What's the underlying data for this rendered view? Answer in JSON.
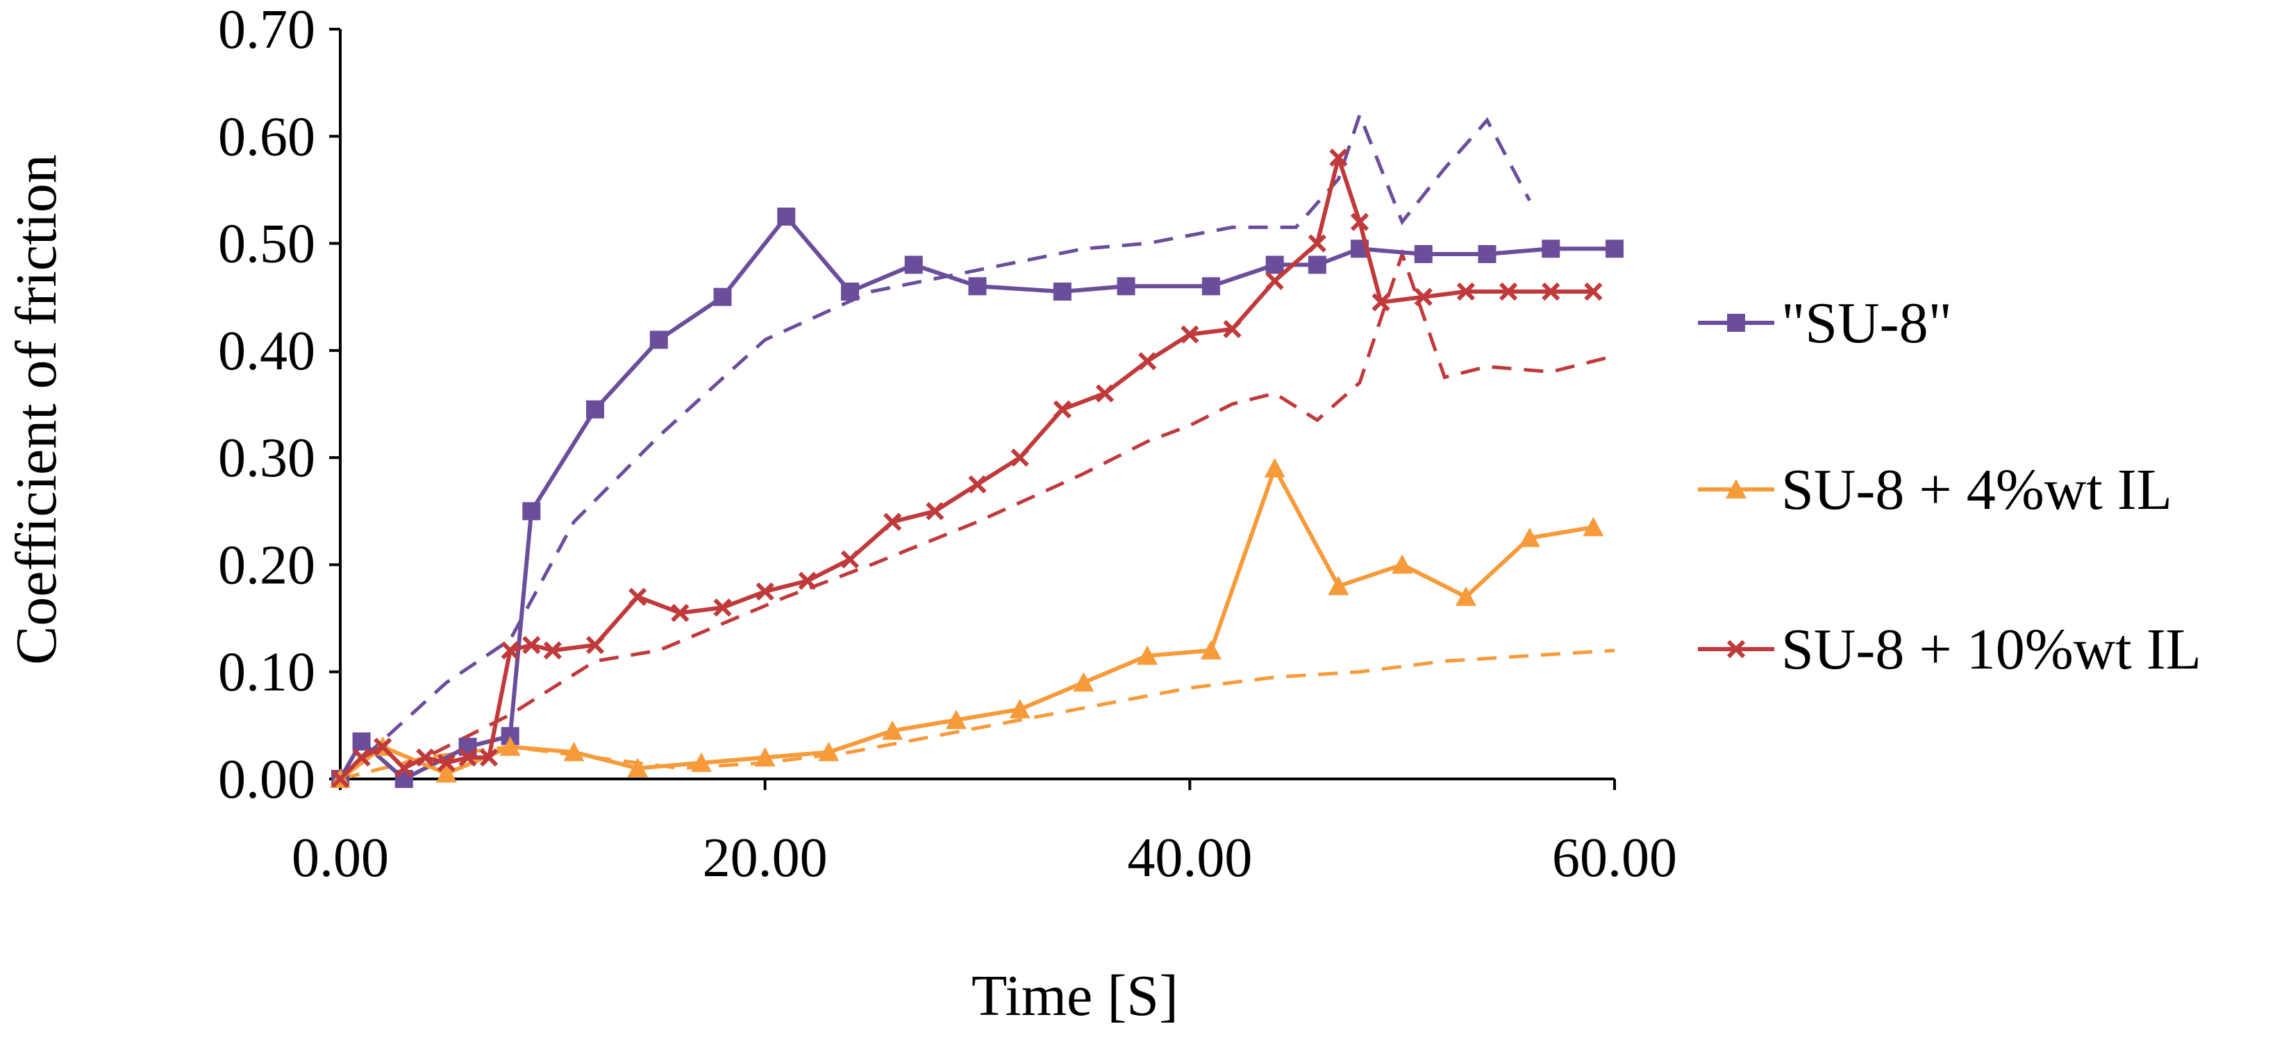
{
  "chart_data": {
    "type": "line",
    "xlabel": "Time [S]",
    "ylabel": "Coefficient of friction",
    "xlim": [
      0,
      60
    ],
    "ylim": [
      0,
      0.7
    ],
    "x_ticks": [
      "0.00",
      "20.00",
      "40.00",
      "60.00"
    ],
    "x_tick_values": [
      0,
      20,
      40,
      60
    ],
    "y_ticks": [
      "0.00",
      "0.10",
      "0.20",
      "0.30",
      "0.40",
      "0.50",
      "0.60",
      "0.70"
    ],
    "y_tick_values": [
      0,
      0.1,
      0.2,
      0.3,
      0.4,
      0.5,
      0.6,
      0.7
    ],
    "grid": false,
    "legend_position": "right",
    "series": [
      {
        "name": "\"SU-8\"",
        "color": "#6B4E9B",
        "marker": "square",
        "line_style": "solid",
        "x": [
          0,
          1,
          3,
          6,
          8,
          9,
          12,
          15,
          18,
          21,
          24,
          27,
          30,
          34,
          37,
          41,
          44,
          46,
          48,
          51,
          54,
          57,
          60
        ],
        "y": [
          0,
          0.035,
          0,
          0.03,
          0.04,
          0.25,
          0.345,
          0.41,
          0.45,
          0.525,
          0.455,
          0.48,
          0.46,
          0.455,
          0.46,
          0.46,
          0.48,
          0.48,
          0.495,
          0.49,
          0.49,
          0.495,
          0.495
        ]
      },
      {
        "name": "SU-8 + 4%wt IL",
        "color": "#F79A3A",
        "marker": "triangle",
        "line_style": "solid",
        "x": [
          0,
          2,
          5,
          8,
          11,
          14,
          17,
          20,
          23,
          26,
          29,
          32,
          35,
          38,
          41,
          44,
          47,
          50,
          53,
          56,
          59
        ],
        "y": [
          0,
          0.03,
          0.005,
          0.03,
          0.025,
          0.01,
          0.015,
          0.02,
          0.025,
          0.045,
          0.055,
          0.065,
          0.09,
          0.115,
          0.12,
          0.29,
          0.18,
          0.2,
          0.17,
          0.225,
          0.235
        ]
      },
      {
        "name": "SU-8 + 10%wt IL",
        "color": "#C0393B",
        "marker": "x",
        "line_style": "solid",
        "x": [
          0,
          1,
          2,
          3,
          4,
          5,
          6,
          7,
          8,
          9,
          10,
          12,
          14,
          16,
          18,
          20,
          22,
          24,
          26,
          28,
          30,
          32,
          34,
          36,
          38,
          40,
          42,
          44,
          46,
          47,
          48,
          49,
          51,
          53,
          55,
          57,
          59
        ],
        "y": [
          0,
          0.02,
          0.03,
          0.01,
          0.02,
          0.015,
          0.02,
          0.02,
          0.12,
          0.125,
          0.12,
          0.125,
          0.17,
          0.155,
          0.16,
          0.175,
          0.185,
          0.205,
          0.24,
          0.25,
          0.275,
          0.3,
          0.345,
          0.36,
          0.39,
          0.415,
          0.42,
          0.465,
          0.5,
          0.58,
          0.52,
          0.445,
          0.45,
          0.455,
          0.455,
          0.455,
          0.455
        ]
      }
    ],
    "trend_lines": [
      {
        "color": "#6B4E9B",
        "line_style": "dashed",
        "x": [
          0,
          5,
          8,
          11,
          15,
          20,
          25,
          30,
          35,
          38,
          42,
          45,
          47,
          48,
          50,
          52,
          54,
          56
        ],
        "y": [
          0,
          0.09,
          0.13,
          0.24,
          0.32,
          0.41,
          0.455,
          0.475,
          0.495,
          0.5,
          0.515,
          0.515,
          0.56,
          0.62,
          0.52,
          0.57,
          0.615,
          0.54
        ]
      },
      {
        "color": "#C0393B",
        "line_style": "dashed",
        "x": [
          0,
          4,
          8,
          12,
          15,
          18,
          21,
          25,
          30,
          35,
          38,
          40,
          42,
          44,
          46,
          48,
          50,
          52,
          54,
          57,
          60
        ],
        "y": [
          0,
          0.02,
          0.06,
          0.11,
          0.12,
          0.145,
          0.17,
          0.2,
          0.24,
          0.285,
          0.315,
          0.33,
          0.35,
          0.36,
          0.335,
          0.37,
          0.49,
          0.375,
          0.385,
          0.38,
          0.395
        ]
      },
      {
        "color": "#F79A3A",
        "line_style": "dashed",
        "x": [
          0,
          4,
          8,
          12,
          16,
          20,
          24,
          28,
          32,
          36,
          40,
          44,
          48,
          52,
          56,
          60
        ],
        "y": [
          0,
          0.02,
          0.03,
          0.02,
          0.01,
          0.015,
          0.025,
          0.04,
          0.055,
          0.07,
          0.085,
          0.095,
          0.1,
          0.11,
          0.115,
          0.12
        ]
      }
    ]
  }
}
